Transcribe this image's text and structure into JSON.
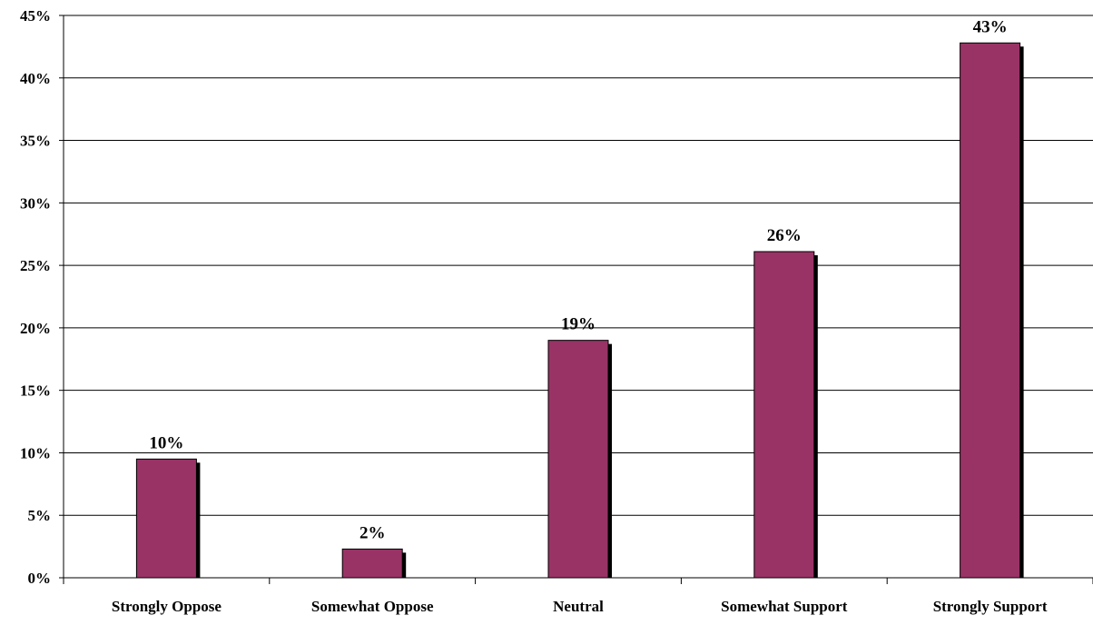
{
  "chart_data": {
    "type": "bar",
    "categories": [
      "Strongly Oppose",
      "Somewhat Oppose",
      "Neutral",
      "Somewhat Support",
      "Strongly Support"
    ],
    "values": [
      9.5,
      2.3,
      19.0,
      26.1,
      42.8
    ],
    "data_labels": [
      "10%",
      "2%",
      "19%",
      "26%",
      "43%"
    ],
    "yticks": [
      0,
      5,
      10,
      15,
      20,
      25,
      30,
      35,
      40,
      45
    ],
    "ytick_labels": [
      "0%",
      "5%",
      "10%",
      "15%",
      "20%",
      "25%",
      "30%",
      "35%",
      "40%",
      "45%"
    ],
    "ylim": [
      0,
      45
    ],
    "grid": true,
    "legend": "none",
    "colors": {
      "bar": "#993366",
      "shadow": "#000000",
      "grid": "#000000"
    }
  }
}
